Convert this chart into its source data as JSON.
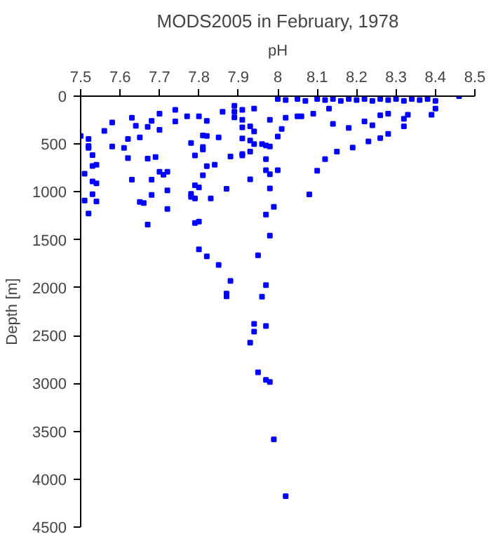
{
  "chart_data": {
    "type": "scatter",
    "title": "MODS2005 in February, 1978",
    "xlabel": "pH",
    "ylabel": "Depth [m]",
    "xlim": [
      7.5,
      8.5
    ],
    "xticks": [
      7.5,
      7.6,
      7.7,
      7.8,
      7.9,
      8,
      8.1,
      8.2,
      8.3,
      8.4,
      8.5
    ],
    "ylim": [
      4500,
      0
    ],
    "yticks": [
      0,
      500,
      1000,
      1500,
      2000,
      2500,
      3000,
      3500,
      4000,
      4500
    ],
    "grid": false,
    "marker": "square",
    "series": [
      {
        "color": "#0000ff",
        "x": [
          7.5,
          7.51,
          7.51,
          7.52,
          7.52,
          7.52,
          7.52,
          7.53,
          7.53,
          7.53,
          7.53,
          7.54,
          7.54,
          7.54,
          7.56,
          7.58,
          7.58,
          7.61,
          7.62,
          7.62,
          7.63,
          7.63,
          7.64,
          7.65,
          7.65,
          7.66,
          7.67,
          7.67,
          7.67,
          7.68,
          7.68,
          7.68,
          7.69,
          7.7,
          7.7,
          7.7,
          7.71,
          7.72,
          7.72,
          7.72,
          7.74,
          7.74,
          7.77,
          7.78,
          7.78,
          7.78,
          7.79,
          7.79,
          7.79,
          7.79,
          7.8,
          7.8,
          7.8,
          7.8,
          7.81,
          7.81,
          7.81,
          7.81,
          7.82,
          7.82,
          7.82,
          7.82,
          7.83,
          7.84,
          7.85,
          7.85,
          7.86,
          7.87,
          7.87,
          7.88,
          7.88,
          7.89,
          7.89,
          7.89,
          7.91,
          7.91,
          7.91,
          7.91,
          7.91,
          7.87,
          7.96,
          7.94,
          7.97,
          7.94,
          7.93,
          7.95,
          7.97,
          7.98,
          7.99,
          8.02,
          7.93,
          7.94,
          7.93,
          7.93,
          7.94,
          7.96,
          7.93,
          7.91,
          7.97,
          7.97,
          7.97,
          7.98,
          8.0,
          7.98,
          7.97,
          7.99,
          8.08,
          8.1,
          8.12,
          8.15,
          8.19,
          8.23,
          8.26,
          8.28,
          8.0,
          8.01,
          7.98,
          7.98,
          7.94,
          7.95,
          7.97,
          7.98,
          8.0,
          8.02,
          8.05,
          8.07,
          8.1,
          8.12,
          8.14,
          8.16,
          8.18,
          8.2,
          8.22,
          8.24,
          8.26,
          8.28,
          8.3,
          8.32,
          8.34,
          8.36,
          8.38,
          8.4,
          8.46,
          8.06,
          8.02,
          8.05,
          8.13,
          8.09,
          8.14,
          8.18,
          8.22,
          8.24,
          8.32,
          8.32,
          8.33,
          8.39,
          8.4,
          8.26,
          8.28
        ],
        "values": [
          416,
          810,
          1090,
          447,
          520,
          540,
          1225,
          615,
          730,
          890,
          1025,
          716,
          910,
          1100,
          363,
          274,
          526,
          540,
          447,
          647,
          226,
          873,
          310,
          431,
          1105,
          1115,
          321,
          652,
          1341,
          258,
          873,
          1031,
          636,
          184,
          352,
          789,
          820,
          789,
          984,
          1178,
          142,
          263,
          210,
          489,
          1020,
          1052,
          620,
          931,
          1068,
          1325,
          210,
          952,
          1310,
          1599,
          410,
          531,
          557,
          826,
          258,
          416,
          731,
          1673,
          1068,
          716,
          431,
          1762,
          163,
          968,
          2062,
          1930,
          631,
          100,
          163,
          221,
          142,
          247,
          326,
          442,
          605,
          2090,
          2095,
          2379,
          2400,
          2458,
          2574,
          2884,
          2963,
          2984,
          3584,
          4178,
          868,
          131,
          316,
          463,
          500,
          500,
          579,
          620,
          515,
          657,
          773,
          815,
          773,
          963,
          1236,
          1157,
          1026,
          778,
          657,
          579,
          537,
          473,
          437,
          394,
          421,
          342,
          526,
          247,
          368,
          1662,
          1973,
          1457,
          30,
          40,
          30,
          50,
          30,
          40,
          30,
          50,
          30,
          40,
          30,
          50,
          30,
          40,
          30,
          50,
          30,
          40,
          30,
          50,
          0,
          210,
          226,
          210,
          131,
          184,
          289,
          331,
          263,
          305,
          237,
          316,
          195,
          195,
          131,
          200,
          184
        ]
      }
    ]
  }
}
